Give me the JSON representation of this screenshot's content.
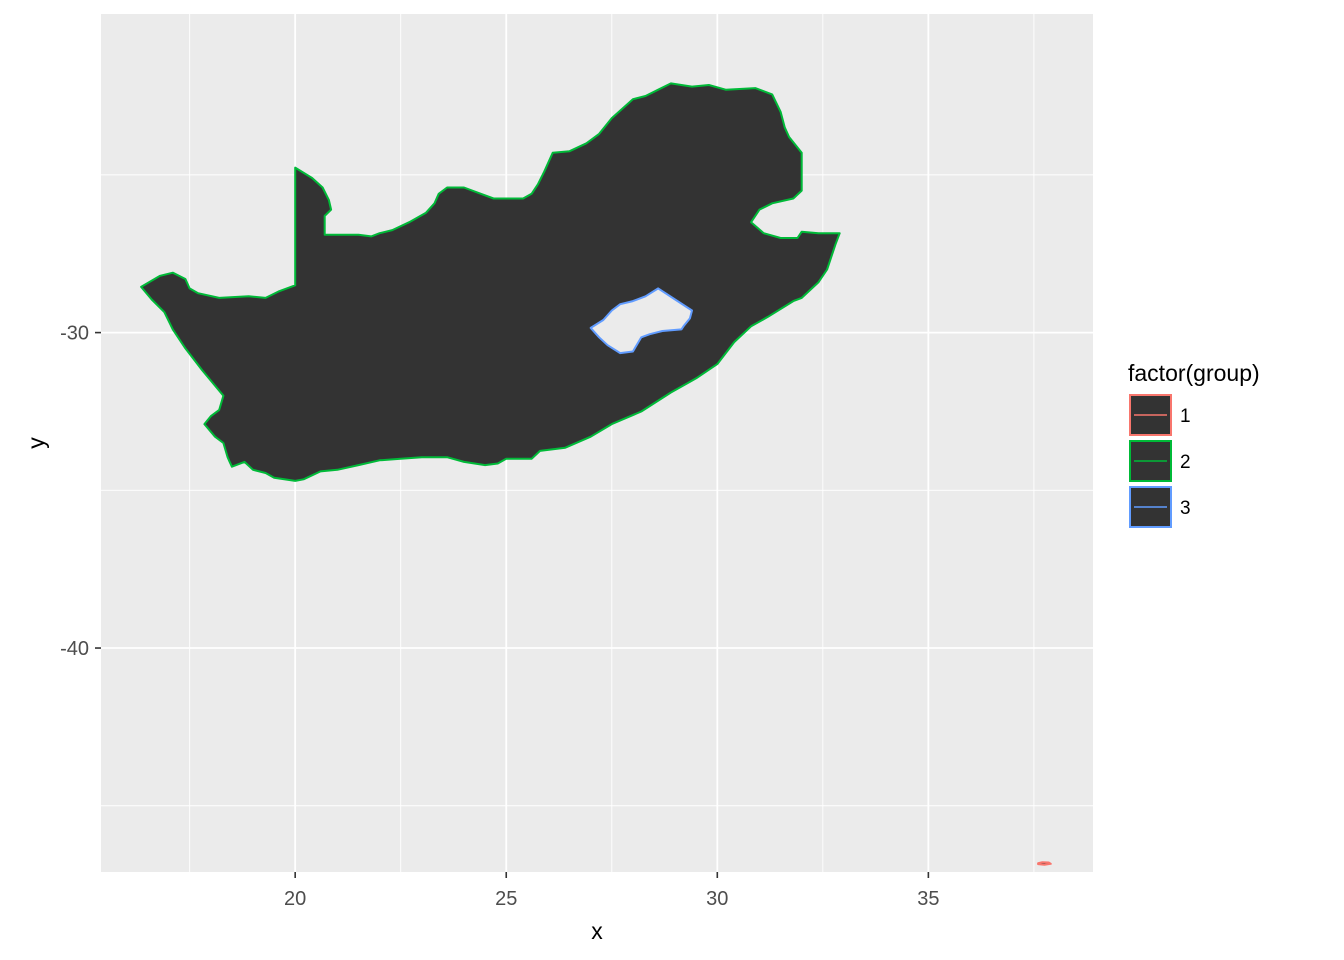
{
  "chart_data": {
    "type": "map",
    "xlabel": "x",
    "ylabel": "y",
    "xlim": [
      15.4,
      38.9
    ],
    "ylim": [
      -47.1,
      -19.9
    ],
    "x_ticks": [
      20,
      25,
      30,
      35
    ],
    "x_tick_labels": [
      "20",
      "25",
      "30",
      "35"
    ],
    "y_ticks": [
      -30,
      -40
    ],
    "y_tick_labels": [
      "-30",
      "-40"
    ],
    "x_minor": [
      17.5,
      22.5,
      27.5,
      32.5,
      37.5
    ],
    "y_minor": [
      -25,
      -35,
      -45
    ],
    "grid": true,
    "panel_background": "#ebebeb",
    "fill_color": "#333333",
    "legend": {
      "title": "factor(group)",
      "position": "right"
    },
    "series": [
      {
        "name": "1",
        "color": "#f8766d",
        "fill": "#333333",
        "polygon": [
          [
            37.6,
            -46.82
          ],
          [
            37.7,
            -46.79
          ],
          [
            37.85,
            -46.8
          ],
          [
            37.9,
            -46.84
          ],
          [
            37.75,
            -46.87
          ],
          [
            37.6,
            -46.85
          ]
        ]
      },
      {
        "name": "2",
        "color": "#00ba38",
        "fill": "#333333",
        "polygon": [
          [
            20.0,
            -24.77
          ],
          [
            20.4,
            -25.1
          ],
          [
            20.65,
            -25.4
          ],
          [
            20.8,
            -25.8
          ],
          [
            20.85,
            -26.1
          ],
          [
            20.7,
            -26.3
          ],
          [
            20.7,
            -26.9
          ],
          [
            21.5,
            -26.9
          ],
          [
            21.8,
            -26.95
          ],
          [
            22.0,
            -26.85
          ],
          [
            22.3,
            -26.75
          ],
          [
            22.7,
            -26.5
          ],
          [
            23.1,
            -26.2
          ],
          [
            23.3,
            -25.9
          ],
          [
            23.4,
            -25.6
          ],
          [
            23.6,
            -25.4
          ],
          [
            24.0,
            -25.4
          ],
          [
            24.4,
            -25.6
          ],
          [
            24.7,
            -25.75
          ],
          [
            25.0,
            -25.75
          ],
          [
            25.4,
            -25.75
          ],
          [
            25.6,
            -25.6
          ],
          [
            25.75,
            -25.3
          ],
          [
            25.9,
            -24.9
          ],
          [
            26.1,
            -24.3
          ],
          [
            26.5,
            -24.25
          ],
          [
            26.9,
            -24.0
          ],
          [
            27.2,
            -23.7
          ],
          [
            27.5,
            -23.2
          ],
          [
            28.0,
            -22.6
          ],
          [
            28.3,
            -22.5
          ],
          [
            28.6,
            -22.3
          ],
          [
            28.9,
            -22.1
          ],
          [
            29.4,
            -22.2
          ],
          [
            29.8,
            -22.15
          ],
          [
            30.2,
            -22.3
          ],
          [
            30.9,
            -22.25
          ],
          [
            31.3,
            -22.45
          ],
          [
            31.5,
            -23.0
          ],
          [
            31.6,
            -23.5
          ],
          [
            31.7,
            -23.8
          ],
          [
            32.0,
            -24.3
          ],
          [
            32.0,
            -25.5
          ],
          [
            31.8,
            -25.75
          ],
          [
            31.3,
            -25.9
          ],
          [
            31.0,
            -26.1
          ],
          [
            30.8,
            -26.5
          ],
          [
            31.1,
            -26.85
          ],
          [
            31.5,
            -27.0
          ],
          [
            31.9,
            -27.0
          ],
          [
            32.0,
            -26.8
          ],
          [
            32.4,
            -26.85
          ],
          [
            32.9,
            -26.85
          ],
          [
            32.8,
            -27.2
          ],
          [
            32.6,
            -28.0
          ],
          [
            32.4,
            -28.4
          ],
          [
            32.0,
            -28.9
          ],
          [
            31.8,
            -29.0
          ],
          [
            31.2,
            -29.5
          ],
          [
            30.8,
            -29.8
          ],
          [
            30.4,
            -30.3
          ],
          [
            30.0,
            -31.0
          ],
          [
            29.5,
            -31.45
          ],
          [
            28.9,
            -31.9
          ],
          [
            28.2,
            -32.5
          ],
          [
            27.5,
            -32.9
          ],
          [
            27.0,
            -33.3
          ],
          [
            26.4,
            -33.65
          ],
          [
            25.8,
            -33.75
          ],
          [
            25.6,
            -34.0
          ],
          [
            25.0,
            -34.0
          ],
          [
            24.8,
            -34.15
          ],
          [
            24.5,
            -34.2
          ],
          [
            24.0,
            -34.1
          ],
          [
            23.6,
            -33.95
          ],
          [
            23.0,
            -33.95
          ],
          [
            22.5,
            -34.0
          ],
          [
            22.0,
            -34.05
          ],
          [
            21.5,
            -34.2
          ],
          [
            21.0,
            -34.35
          ],
          [
            20.6,
            -34.4
          ],
          [
            20.2,
            -34.65
          ],
          [
            20.0,
            -34.7
          ],
          [
            19.5,
            -34.6
          ],
          [
            19.3,
            -34.45
          ],
          [
            19.0,
            -34.35
          ],
          [
            18.8,
            -34.1
          ],
          [
            18.5,
            -34.25
          ],
          [
            18.45,
            -34.1
          ],
          [
            18.4,
            -33.95
          ],
          [
            18.3,
            -33.5
          ],
          [
            18.1,
            -33.3
          ],
          [
            17.85,
            -32.9
          ],
          [
            18.0,
            -32.65
          ],
          [
            18.2,
            -32.45
          ],
          [
            18.3,
            -32.0
          ],
          [
            18.05,
            -31.6
          ],
          [
            17.8,
            -31.2
          ],
          [
            17.4,
            -30.5
          ],
          [
            17.1,
            -29.9
          ],
          [
            16.9,
            -29.35
          ],
          [
            16.6,
            -28.95
          ],
          [
            16.35,
            -28.55
          ],
          [
            16.8,
            -28.2
          ],
          [
            17.1,
            -28.1
          ],
          [
            17.4,
            -28.3
          ],
          [
            17.5,
            -28.6
          ],
          [
            17.7,
            -28.75
          ],
          [
            18.2,
            -28.9
          ],
          [
            18.9,
            -28.85
          ],
          [
            19.3,
            -28.9
          ],
          [
            19.6,
            -28.7
          ],
          [
            20.0,
            -28.5
          ]
        ]
      },
      {
        "name": "3",
        "color": "#619cff",
        "fill": "#ebebeb",
        "polygon": [
          [
            28.6,
            -28.6
          ],
          [
            29.0,
            -28.95
          ],
          [
            29.4,
            -29.3
          ],
          [
            29.35,
            -29.55
          ],
          [
            29.2,
            -29.8
          ],
          [
            29.15,
            -29.9
          ],
          [
            28.7,
            -29.95
          ],
          [
            28.4,
            -30.05
          ],
          [
            28.2,
            -30.15
          ],
          [
            28.0,
            -30.6
          ],
          [
            27.7,
            -30.65
          ],
          [
            27.4,
            -30.4
          ],
          [
            27.2,
            -30.15
          ],
          [
            27.0,
            -29.85
          ],
          [
            27.3,
            -29.6
          ],
          [
            27.5,
            -29.3
          ],
          [
            27.7,
            -29.1
          ],
          [
            28.0,
            -29.0
          ],
          [
            28.3,
            -28.85
          ]
        ]
      }
    ]
  }
}
